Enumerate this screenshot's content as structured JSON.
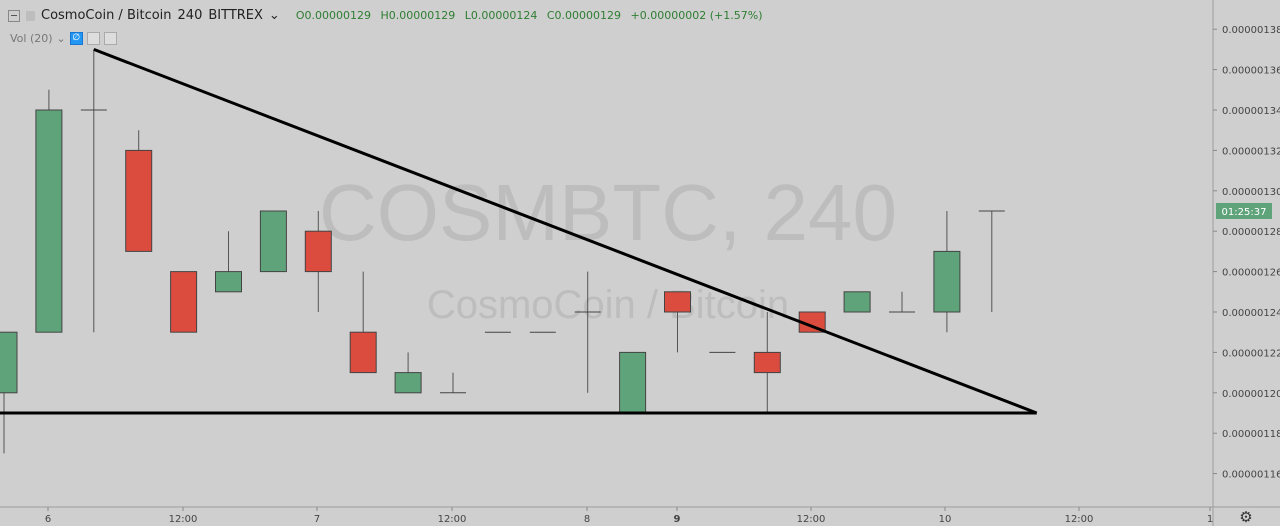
{
  "header": {
    "symbol": "CosmoCoin / Bitcoin",
    "interval": "240",
    "exchange": "BITTREX",
    "open": "O0.00000129",
    "high": "H0.00000129",
    "low": "L0.00000124",
    "close": "C0.00000129",
    "change": "+0.00000002 (+1.57%)"
  },
  "volume_indicator": {
    "label": "Vol (20)"
  },
  "watermark": {
    "line1": "COSMBTC, 240",
    "line2": "CosmoCoin / Bitcoin"
  },
  "price_axis": {
    "labels": [
      "0.00000138",
      "0.00000136",
      "0.00000134",
      "0.00000132",
      "0.00000130",
      "0.00000128",
      "0.00000126",
      "0.00000124",
      "0.00000122",
      "0.00000120",
      "0.00000118",
      "0.00000116"
    ]
  },
  "time_axis": {
    "labels": [
      "6",
      "12:00",
      "7",
      "12:00",
      "8",
      "9",
      "12:00",
      "10",
      "12:00",
      "1"
    ]
  },
  "countdown": {
    "text": "01:25:37",
    "price": 129
  },
  "colors": {
    "up": "#5fa37a",
    "down": "#db4c3f",
    "background": "#cfcfcf",
    "countdown_bg": "#5fa37a"
  },
  "chart_data": {
    "type": "candlestick",
    "price_unit": "1e-8 BTC",
    "ylim": [
      115,
      139
    ],
    "candles": [
      {
        "o": 120,
        "h": 123,
        "l": 117,
        "c": 123
      },
      {
        "o": 123,
        "h": 135,
        "l": 123,
        "c": 134
      },
      {
        "o": 134,
        "h": 137,
        "l": 123,
        "c": 134
      },
      {
        "o": 132,
        "h": 133,
        "l": 127,
        "c": 127
      },
      {
        "o": 126,
        "h": 126,
        "l": 123,
        "c": 123
      },
      {
        "o": 125,
        "h": 128,
        "l": 125,
        "c": 126
      },
      {
        "o": 126,
        "h": 129,
        "l": 126,
        "c": 129
      },
      {
        "o": 128,
        "h": 129,
        "l": 124,
        "c": 126
      },
      {
        "o": 123,
        "h": 126,
        "l": 121,
        "c": 121
      },
      {
        "o": 120,
        "h": 122,
        "l": 120,
        "c": 121
      },
      {
        "o": 120,
        "h": 121,
        "l": 120,
        "c": 120
      },
      {
        "o": 123,
        "h": 123,
        "l": 123,
        "c": 123
      },
      {
        "o": 123,
        "h": 123,
        "l": 123,
        "c": 123
      },
      {
        "o": 124,
        "h": 126,
        "l": 120,
        "c": 124
      },
      {
        "o": 119,
        "h": 122,
        "l": 119,
        "c": 122
      },
      {
        "o": 125,
        "h": 125,
        "l": 122,
        "c": 124
      },
      {
        "o": 122,
        "h": 122,
        "l": 122,
        "c": 122
      },
      {
        "o": 122,
        "h": 124,
        "l": 119,
        "c": 121
      },
      {
        "o": 124,
        "h": 124,
        "l": 123,
        "c": 123
      },
      {
        "o": 124,
        "h": 125,
        "l": 124,
        "c": 125
      },
      {
        "o": 124,
        "h": 125,
        "l": 124,
        "c": 124
      },
      {
        "o": 124,
        "h": 129,
        "l": 123,
        "c": 127
      },
      {
        "o": 129,
        "h": 129,
        "l": 124,
        "c": 129
      }
    ],
    "trendlines": [
      {
        "name": "descending-resistance",
        "x1": 2,
        "y1": 137,
        "x2": 23,
        "y2": 119
      },
      {
        "name": "horizontal-support",
        "x1": -0.1,
        "y1": 119,
        "x2": 23,
        "y2": 119
      }
    ]
  }
}
